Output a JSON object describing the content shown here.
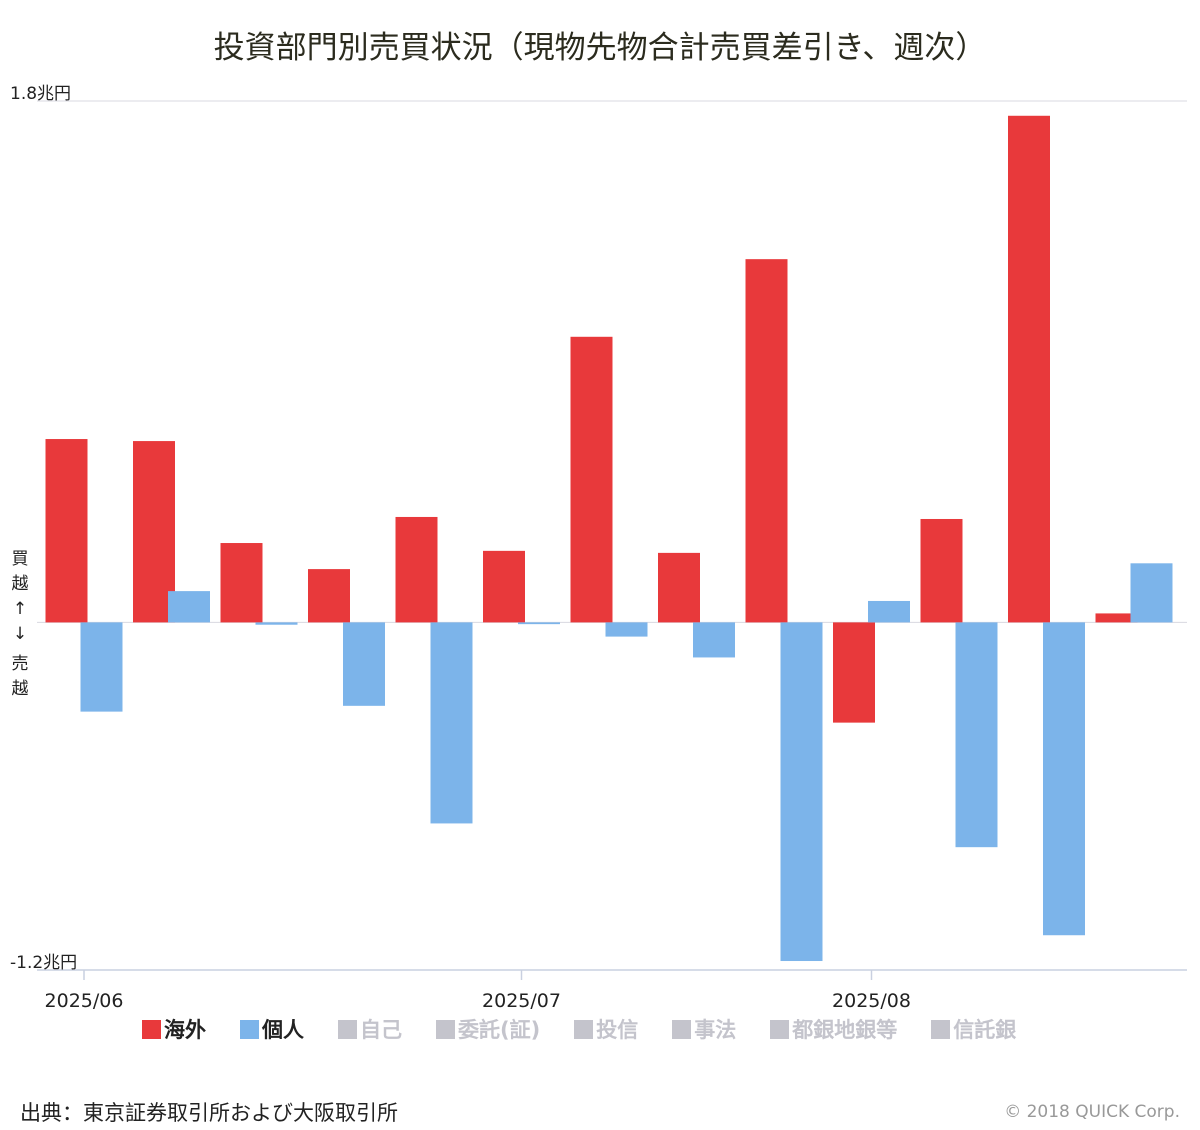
{
  "chart_data": {
    "type": "bar",
    "title": "投資部門別売買状況（現物先物合計売買差引き、週次）",
    "ylim": [
      -1.2,
      1.8
    ],
    "y_tick_labels": [
      "1.8兆円",
      "-1.2兆円"
    ],
    "y_axis_note": [
      "買",
      "越",
      "↑",
      "↓",
      "売",
      "越"
    ],
    "x_labels": [
      "2025/06",
      "2025/07",
      "2025/08"
    ],
    "x_label_week_index": [
      0,
      5,
      9
    ],
    "grid": "top gridline only",
    "legend_position": "bottom",
    "series": [
      {
        "name": "海外",
        "color": "#e8393b",
        "values": [
          0.633,
          0.626,
          0.274,
          0.184,
          0.364,
          0.247,
          0.986,
          0.24,
          1.254,
          -0.346,
          0.357,
          1.749,
          0.031
        ]
      },
      {
        "name": "個人",
        "color": "#7cb4ea",
        "values": [
          -0.308,
          0.108,
          -0.008,
          -0.288,
          -0.694,
          -0.006,
          -0.049,
          -0.121,
          -1.169,
          0.074,
          -0.776,
          -1.08,
          0.204
        ]
      }
    ]
  },
  "legend": [
    {
      "label": "海外",
      "color": "#e8393b",
      "active": true
    },
    {
      "label": "個人",
      "color": "#7cb4ea",
      "active": true
    },
    {
      "label": "自己",
      "color": "#c4c4cc",
      "active": false
    },
    {
      "label": "委託(証)",
      "color": "#c4c4cc",
      "active": false
    },
    {
      "label": "投信",
      "color": "#c4c4cc",
      "active": false
    },
    {
      "label": "事法",
      "color": "#c4c4cc",
      "active": false
    },
    {
      "label": "都銀地銀等",
      "color": "#c4c4cc",
      "active": false
    },
    {
      "label": "信託銀",
      "color": "#c4c4cc",
      "active": false
    }
  ],
  "source": "出典：東京証券取引所および大阪取引所",
  "copyright": "© 2018 QUICK Corp."
}
